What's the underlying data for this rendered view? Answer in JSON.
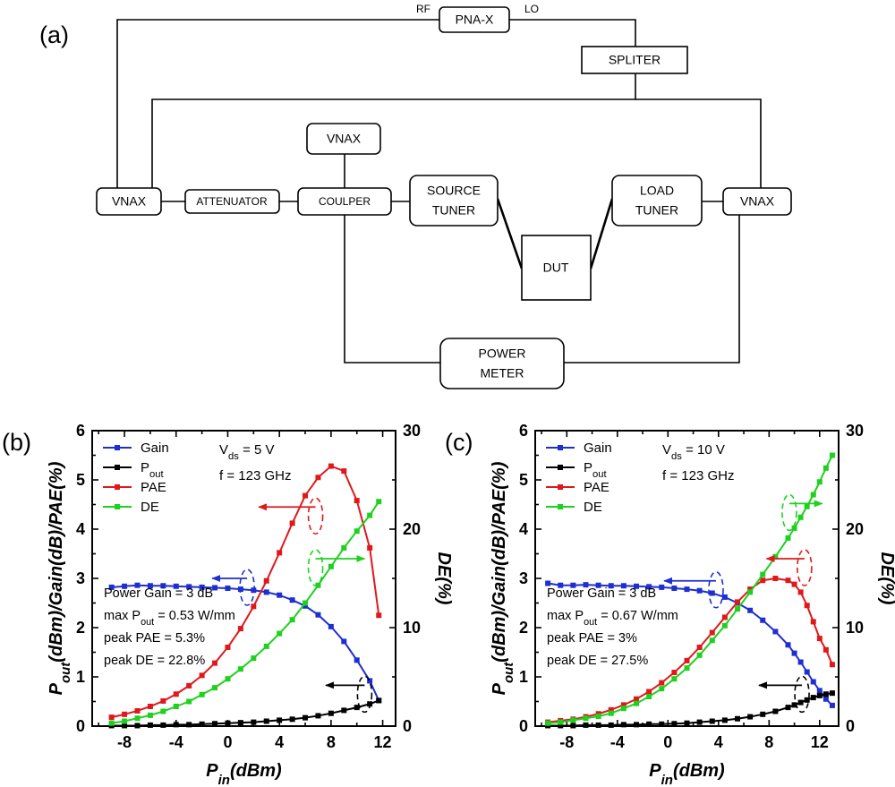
{
  "panel_a": {
    "tag": "(a)",
    "blocks": {
      "pnax": "PNA-X",
      "spliter": "SPLITER",
      "vnax_top": "VNAX",
      "vnax_left": "VNAX",
      "attenuator": "ATTENUATOR",
      "coupler": "COULPER",
      "source_tuner": [
        "SOURCE",
        "TUNER"
      ],
      "load_tuner": [
        "LOAD",
        "TUNER"
      ],
      "vnax_right": "VNAX",
      "dut": "DUT",
      "power_meter": [
        "POWER",
        "METER"
      ]
    },
    "port_labels": {
      "rf": "RF",
      "lo": "LO"
    }
  },
  "chart_data": [
    {
      "panel": "(b)",
      "type": "line",
      "xlabel": "P_in(dBm)",
      "ylabel": "P_out(dBm)/Gain(dB)/PAE(%)",
      "y2label": "DE(%)",
      "xlim": [
        -10.5,
        13
      ],
      "ylim": [
        0,
        6
      ],
      "y2lim": [
        0,
        30
      ],
      "xticks": [
        "-8",
        "-4",
        "0",
        "4",
        "8",
        "12"
      ],
      "yticks": [
        "0",
        "1",
        "2",
        "3",
        "4",
        "5",
        "6"
      ],
      "y2ticks": [
        "0",
        "10",
        "20",
        "30"
      ],
      "grid": false,
      "legend_position": "top-left",
      "legend": [
        "Gain",
        "P_out",
        "PAE",
        "DE"
      ],
      "annotations": {
        "vds": "V_ds = 5 V",
        "freq": "f = 123 GHz",
        "power_gain": "Power Gain = 3 dB",
        "max_pout": "max P_out = 0.53 W/mm",
        "peak_pae": "peak PAE = 5.3%",
        "peak_de": "peak DE = 22.8%"
      },
      "x": [
        -9,
        -8,
        -7,
        -6,
        -5,
        -4,
        -3,
        -2,
        -1,
        0,
        1,
        2,
        3,
        4,
        5,
        6,
        7,
        8,
        9,
        10,
        11,
        11.7
      ],
      "series": [
        {
          "name": "Gain",
          "axis": "left",
          "color": "#1f2ed1",
          "values": [
            2.82,
            2.84,
            2.86,
            2.85,
            2.85,
            2.84,
            2.83,
            2.82,
            2.81,
            2.8,
            2.78,
            2.76,
            2.72,
            2.66,
            2.56,
            2.44,
            2.26,
            2.02,
            1.72,
            1.34,
            0.92,
            0.52
          ]
        },
        {
          "name": "P_out",
          "axis": "left",
          "color": "#000000",
          "values": [
            0.01,
            0.01,
            0.01,
            0.02,
            0.02,
            0.03,
            0.03,
            0.04,
            0.05,
            0.06,
            0.07,
            0.08,
            0.1,
            0.12,
            0.14,
            0.17,
            0.21,
            0.26,
            0.32,
            0.38,
            0.45,
            0.52
          ]
        },
        {
          "name": "PAE",
          "axis": "left",
          "color": "#e0181c",
          "values": [
            0.18,
            0.24,
            0.31,
            0.4,
            0.51,
            0.65,
            0.82,
            1.03,
            1.28,
            1.6,
            1.98,
            2.43,
            2.95,
            3.52,
            4.12,
            4.68,
            5.05,
            5.28,
            5.18,
            4.58,
            3.62,
            2.25
          ]
        },
        {
          "name": "DE",
          "axis": "right",
          "color": "#1fd11f",
          "values": [
            0.3,
            0.5,
            0.8,
            1.1,
            1.5,
            2.0,
            2.5,
            3.2,
            3.9,
            4.8,
            5.8,
            6.9,
            8.1,
            9.4,
            10.8,
            12.5,
            14.3,
            16.2,
            18.1,
            19.8,
            21.4,
            22.8
          ]
        }
      ],
      "arrows": [
        {
          "series": "PAE",
          "from": [
            6.8,
            4.45
          ],
          "to": [
            2.4,
            4.45
          ],
          "color": "#e0181c"
        },
        {
          "series": "Gain",
          "from": [
            1.5,
            3.0
          ],
          "to": [
            -1.2,
            3.0
          ],
          "color": "#1f2ed1"
        },
        {
          "series": "DE",
          "from": [
            6.8,
            3.4
          ],
          "to": [
            10.6,
            3.4
          ],
          "color": "#1fd11f"
        },
        {
          "series": "P_out",
          "from": [
            10.6,
            0.83
          ],
          "to": [
            7.6,
            0.83
          ],
          "color": "#000000"
        }
      ]
    },
    {
      "panel": "(c)",
      "type": "line",
      "xlabel": "P_in(dBm)",
      "ylabel": "P_out(dBm)/Gain(dB)/PAE(%)",
      "y2label": "DE(%)",
      "xlim": [
        -10.5,
        13.5
      ],
      "ylim": [
        0,
        6
      ],
      "y2lim": [
        0,
        30
      ],
      "xticks": [
        "-8",
        "-4",
        "0",
        "4",
        "8",
        "12"
      ],
      "yticks": [
        "0",
        "1",
        "2",
        "3",
        "4",
        "5",
        "6"
      ],
      "y2ticks": [
        "0",
        "10",
        "20",
        "30"
      ],
      "grid": false,
      "legend_position": "top-left",
      "legend": [
        "Gain",
        "P_out",
        "PAE",
        "DE"
      ],
      "annotations": {
        "vds": "V_ds = 10 V",
        "freq": "f = 123 GHz",
        "power_gain": "Power Gain = 3 dB",
        "max_pout": "max P_out = 0.67 W/mm",
        "peak_pae": "peak PAE = 3%",
        "peak_de": "peak DE = 27.5%"
      },
      "x": [
        -9.5,
        -8.5,
        -7.5,
        -6.5,
        -5.5,
        -4.5,
        -3.5,
        -2.5,
        -1.5,
        -0.5,
        0.5,
        1.5,
        2.5,
        3.5,
        4.5,
        5.5,
        6.5,
        7.5,
        8.5,
        9.5,
        10,
        10.5,
        11,
        11.5,
        12,
        12.5,
        13
      ],
      "series": [
        {
          "name": "Gain",
          "axis": "left",
          "color": "#1f2ed1",
          "values": [
            2.9,
            2.86,
            2.86,
            2.87,
            2.86,
            2.85,
            2.85,
            2.84,
            2.83,
            2.82,
            2.8,
            2.78,
            2.75,
            2.7,
            2.62,
            2.5,
            2.35,
            2.15,
            1.92,
            1.65,
            1.48,
            1.3,
            1.1,
            0.9,
            0.72,
            0.55,
            0.42
          ]
        },
        {
          "name": "P_out",
          "axis": "left",
          "color": "#000000",
          "values": [
            0.01,
            0.01,
            0.01,
            0.02,
            0.02,
            0.02,
            0.03,
            0.03,
            0.04,
            0.04,
            0.05,
            0.06,
            0.08,
            0.1,
            0.12,
            0.15,
            0.19,
            0.24,
            0.3,
            0.38,
            0.43,
            0.48,
            0.53,
            0.58,
            0.62,
            0.65,
            0.67
          ]
        },
        {
          "name": "PAE",
          "axis": "left",
          "color": "#e0181c",
          "values": [
            0.08,
            0.11,
            0.14,
            0.19,
            0.25,
            0.33,
            0.43,
            0.55,
            0.7,
            0.88,
            1.09,
            1.33,
            1.6,
            1.9,
            2.21,
            2.52,
            2.78,
            2.96,
            3.0,
            2.96,
            2.88,
            2.72,
            2.45,
            2.12,
            1.78,
            1.55,
            1.25
          ]
        },
        {
          "name": "DE",
          "axis": "right",
          "color": "#1fd11f",
          "values": [
            0.3,
            0.4,
            0.6,
            0.8,
            1.0,
            1.3,
            1.8,
            2.3,
            3.0,
            3.8,
            4.8,
            5.9,
            7.2,
            8.7,
            10.2,
            11.9,
            13.6,
            15.4,
            17.2,
            19.1,
            20.1,
            21.2,
            22.3,
            23.5,
            24.8,
            26.2,
            27.5
          ]
        }
      ],
      "arrows": [
        {
          "series": "PAE",
          "from": [
            10.8,
            3.4
          ],
          "to": [
            7.8,
            3.4
          ],
          "color": "#e0181c"
        },
        {
          "series": "Gain",
          "from": [
            3.8,
            2.95
          ],
          "to": [
            -0.3,
            2.95
          ],
          "color": "#1f2ed1"
        },
        {
          "series": "DE",
          "from": [
            9.6,
            4.52
          ],
          "to": [
            12.2,
            4.52
          ],
          "color": "#1fd11f"
        },
        {
          "series": "P_out",
          "from": [
            10.6,
            0.83
          ],
          "to": [
            7.2,
            0.83
          ],
          "color": "#000000"
        }
      ]
    }
  ]
}
